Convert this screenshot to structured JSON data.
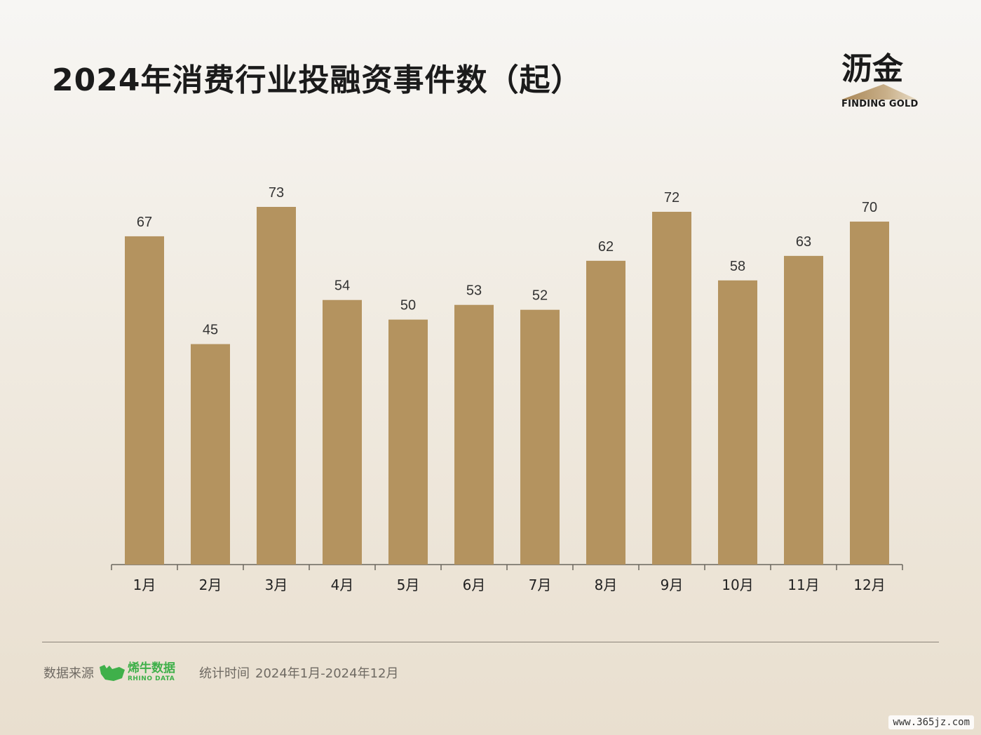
{
  "title": "2024年消费行业投融资事件数（起）",
  "brand": {
    "name": "沥金",
    "tagline": "FINDING GOLD",
    "color": "#b4935f"
  },
  "chart_data": {
    "type": "bar",
    "title": "2024年消费行业投融资事件数（起）",
    "categories": [
      "1月",
      "2月",
      "3月",
      "4月",
      "5月",
      "6月",
      "7月",
      "8月",
      "9月",
      "10月",
      "11月",
      "12月"
    ],
    "values": [
      67,
      45,
      73,
      54,
      50,
      53,
      52,
      62,
      72,
      58,
      63,
      70
    ],
    "xlabel": "",
    "ylabel": "",
    "ylim": [
      0,
      80
    ],
    "grid": false,
    "data_labels": true,
    "bar_color": "#b4935f"
  },
  "footer": {
    "source_label": "数据来源",
    "source_name_cn": "烯牛数据",
    "source_name_en": "RHINO DATA",
    "period_label": "统计时间",
    "period_value": "2024年1月-2024年12月"
  },
  "watermark": "www.365jz.com"
}
